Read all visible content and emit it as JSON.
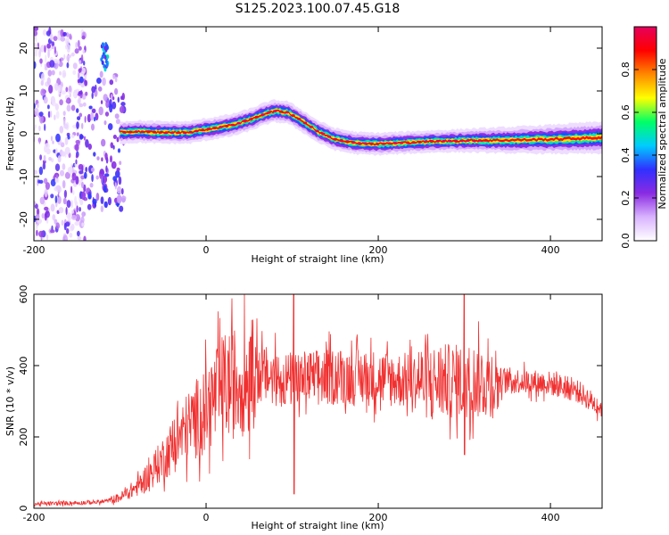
{
  "figure_title": "S125.2023.100.07.45.G18",
  "chart_data": [
    {
      "type": "heatmap",
      "title": "S125.2023.100.07.45.G18",
      "xlabel": "Height of straight line (km)",
      "ylabel": "Frequency (Hz)",
      "xlim": [
        -200,
        460
      ],
      "ylim": [
        -25,
        25
      ],
      "x_ticks": [
        -200,
        0,
        200,
        400
      ],
      "y_ticks": [
        -20,
        -10,
        0,
        10,
        20
      ],
      "colorbar": {
        "label": "Normalized spectral amplitude",
        "range": [
          0,
          1
        ],
        "ticks": [
          0.0,
          0.2,
          0.4,
          0.6,
          0.8
        ],
        "tick_labels": [
          "0.0",
          "0.2",
          "0.4",
          "0.6",
          "0.8"
        ],
        "colormap": [
          "#ffffff",
          "#d9b3ff",
          "#8a2be2",
          "#3030ff",
          "#00ccff",
          "#00ff66",
          "#ffff00",
          "#ff8800",
          "#ff0000",
          "#e6005c"
        ]
      },
      "ridge": {
        "x": [
          -100,
          -80,
          -50,
          -20,
          0,
          30,
          50,
          70,
          80,
          95,
          110,
          130,
          150,
          175,
          200,
          230,
          260,
          300,
          350,
          400,
          460
        ],
        "y": [
          0.3,
          0.5,
          0.3,
          0.3,
          1.0,
          2.0,
          3.2,
          4.8,
          5.3,
          5.0,
          3.2,
          0.5,
          -1.3,
          -2.2,
          -2.4,
          -2.1,
          -1.8,
          -1.6,
          -1.5,
          -1.3,
          -0.9
        ]
      },
      "grid": false
    },
    {
      "type": "line",
      "xlabel": "Height of straight line (km)",
      "ylabel": "SNR (10 * v/v)",
      "xlim": [
        -200,
        460
      ],
      "ylim": [
        0,
        600
      ],
      "x_ticks": [
        -200,
        0,
        200,
        400
      ],
      "y_ticks": [
        0,
        200,
        400,
        600
      ],
      "line_color": "#f03030",
      "series": [
        {
          "x": [
            -200,
            -150,
            -120,
            -100,
            -80,
            -60,
            -40,
            -20,
            0,
            20,
            50,
            60,
            80,
            100,
            150,
            200,
            250,
            300,
            350,
            400,
            430,
            460
          ],
          "values": [
            12,
            15,
            18,
            30,
            60,
            110,
            170,
            230,
            280,
            340,
            370,
            380,
            365,
            360,
            370,
            365,
            355,
            355,
            360,
            350,
            330,
            280
          ]
        }
      ],
      "spikes": [
        {
          "x": 52,
          "values": [
            480,
            300
          ]
        },
        {
          "x": 102,
          "values": [
            610,
            40
          ]
        },
        {
          "x": 300,
          "values": [
            600,
            150
          ]
        }
      ],
      "grid": false
    }
  ]
}
